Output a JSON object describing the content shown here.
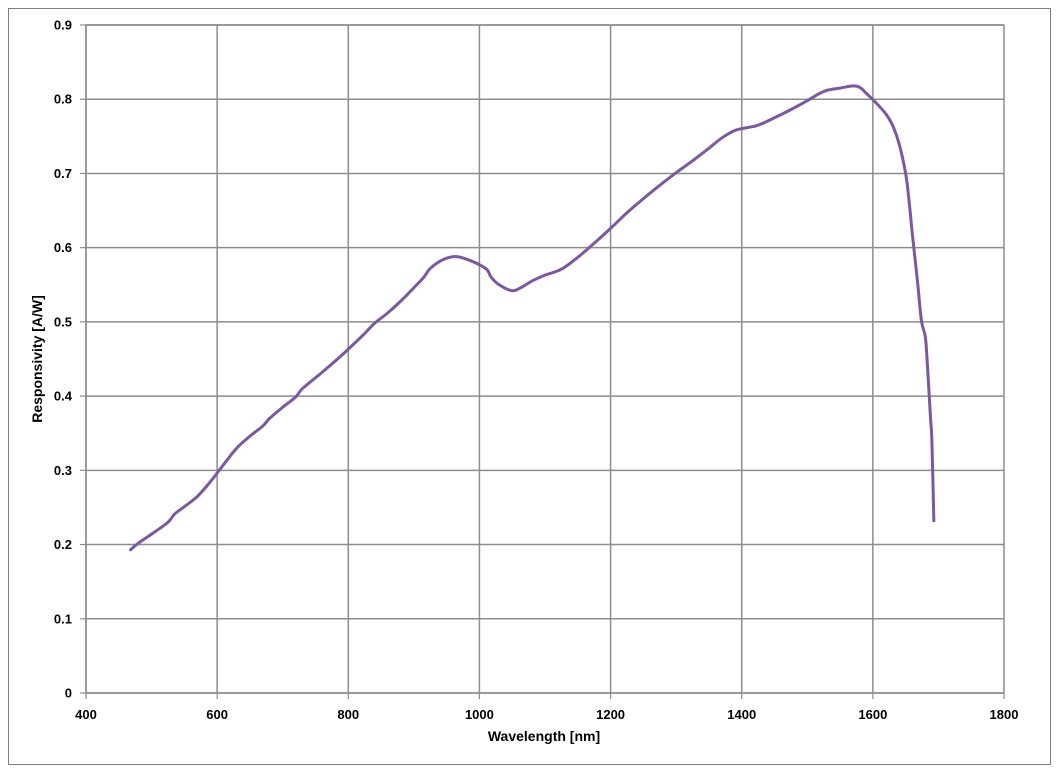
{
  "chart_data": {
    "type": "line",
    "title": "",
    "xlabel": "Wavelength [nm]",
    "ylabel": "Responsivity [A/W]",
    "xlim": [
      400,
      1800
    ],
    "ylim": [
      0,
      0.9
    ],
    "x_ticks": [
      "400",
      "600",
      "800",
      "1000",
      "1200",
      "1400",
      "1600",
      "1800"
    ],
    "y_ticks": [
      "0",
      "0.1",
      "0.2",
      "0.3",
      "0.4",
      "0.5",
      "0.6",
      "0.7",
      "0.8",
      "0.9"
    ],
    "grid": true,
    "legend": "none",
    "series": [
      {
        "color": "#7b58a0",
        "x": [
          468,
          480,
          500,
          525,
          535,
          550,
          570,
          590,
          610,
          630,
          650,
          670,
          680,
          700,
          720,
          730,
          760,
          790,
          820,
          840,
          860,
          880,
          900,
          915,
          925,
          945,
          965,
          985,
          1000,
          1012,
          1018,
          1030,
          1050,
          1065,
          1080,
          1100,
          1125,
          1150,
          1175,
          1200,
          1225,
          1250,
          1275,
          1300,
          1325,
          1350,
          1370,
          1390,
          1410,
          1425,
          1450,
          1475,
          1500,
          1515,
          1530,
          1550,
          1570,
          1580,
          1590,
          1605,
          1620,
          1630,
          1640,
          1650,
          1655,
          1660,
          1668,
          1674,
          1680,
          1683,
          1684,
          1688,
          1690,
          1693
        ],
        "y": [
          0.193,
          0.202,
          0.214,
          0.23,
          0.241,
          0.251,
          0.265,
          0.285,
          0.308,
          0.33,
          0.346,
          0.36,
          0.37,
          0.385,
          0.399,
          0.41,
          0.432,
          0.455,
          0.48,
          0.498,
          0.512,
          0.528,
          0.546,
          0.56,
          0.572,
          0.584,
          0.588,
          0.583,
          0.577,
          0.57,
          0.56,
          0.55,
          0.542,
          0.547,
          0.555,
          0.563,
          0.571,
          0.587,
          0.606,
          0.626,
          0.647,
          0.666,
          0.684,
          0.701,
          0.717,
          0.734,
          0.748,
          0.758,
          0.762,
          0.765,
          0.775,
          0.786,
          0.798,
          0.806,
          0.812,
          0.815,
          0.818,
          0.816,
          0.808,
          0.795,
          0.78,
          0.765,
          0.74,
          0.7,
          0.665,
          0.62,
          0.555,
          0.502,
          0.48,
          0.445,
          0.43,
          0.37,
          0.34,
          0.232
        ]
      }
    ]
  }
}
